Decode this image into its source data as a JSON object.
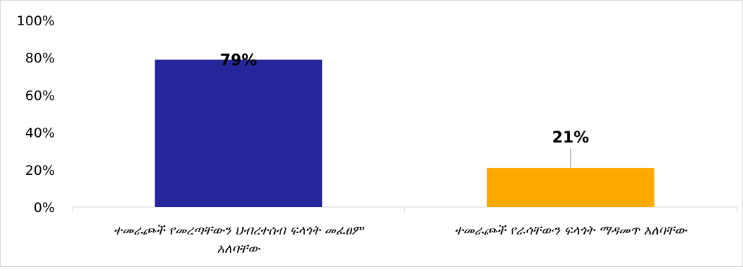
{
  "chart_data": {
    "type": "bar",
    "categories": [
      [
        "ተመራጮች የመረጣቸውን ህብረተሰብ ፍላጎት መፈፀም",
        "አለባቸው"
      ],
      [
        "ተመራጮች የራሳቸውን ፍላጎት ማዳመጥ አለባቸው"
      ]
    ],
    "values": [
      79,
      21
    ],
    "data_labels": [
      "79%",
      "21%"
    ],
    "colors": [
      "#26269b",
      "#ffa800"
    ],
    "ylim": [
      0,
      100
    ],
    "yticks": [
      0,
      20,
      40,
      60,
      80,
      100
    ],
    "ytick_labels": [
      "0%",
      "20%",
      "40%",
      "60%",
      "80%",
      "100%"
    ],
    "grid": false,
    "legend": "none",
    "title": "",
    "xlabel": "",
    "ylabel": ""
  }
}
